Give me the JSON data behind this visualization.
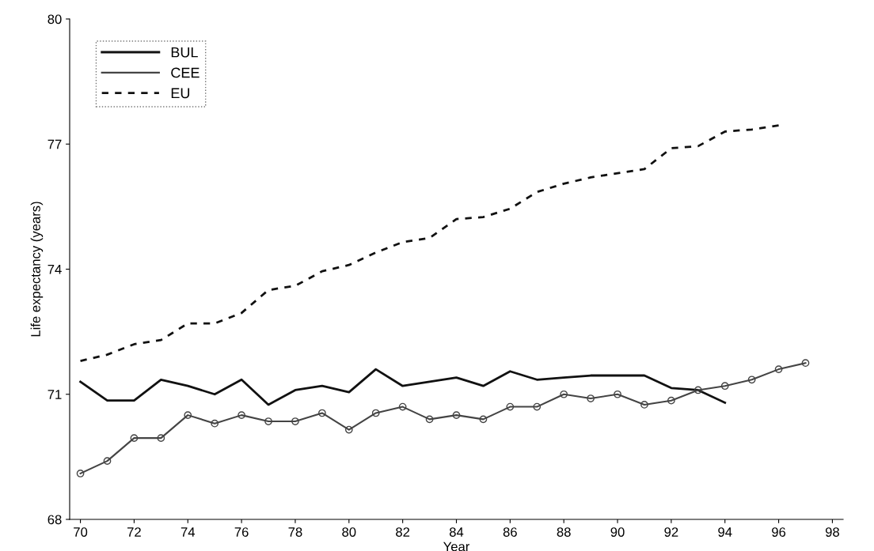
{
  "chart_data": {
    "type": "line",
    "xlabel": "Year",
    "ylabel": "Life expectancy (years)",
    "xlim": [
      69.6,
      98.4
    ],
    "xticks": [
      70,
      72,
      74,
      76,
      78,
      80,
      82,
      84,
      86,
      88,
      90,
      92,
      94,
      96,
      98
    ],
    "ylim": [
      68,
      80
    ],
    "yticks": [
      68,
      71,
      74,
      77,
      80
    ],
    "grid": false,
    "legend": "top left",
    "x": [
      70,
      71,
      72,
      73,
      74,
      75,
      76,
      77,
      78,
      79,
      80,
      81,
      82,
      83,
      84,
      85,
      86,
      87,
      88,
      89,
      90,
      91,
      92,
      93,
      94,
      95,
      96,
      97
    ],
    "series": [
      {
        "name": "BUL",
        "color": "#111111",
        "marker": "none",
        "line_style": "solid",
        "values": [
          71.3,
          70.85,
          70.85,
          71.35,
          71.2,
          71.0,
          71.35,
          70.75,
          71.1,
          71.2,
          71.05,
          71.6,
          71.2,
          71.3,
          71.4,
          71.2,
          71.55,
          71.35,
          71.4,
          71.45,
          71.45,
          71.45,
          71.15,
          71.1,
          70.8,
          null,
          null,
          null
        ]
      },
      {
        "name": "CEE",
        "color": "#444444",
        "marker": "circle",
        "line_style": "solid",
        "values": [
          69.1,
          69.4,
          69.95,
          69.95,
          70.5,
          70.3,
          70.5,
          70.35,
          70.35,
          70.55,
          70.15,
          70.55,
          70.7,
          70.4,
          70.5,
          70.4,
          70.7,
          70.7,
          71.0,
          70.9,
          71.0,
          70.75,
          70.85,
          71.1,
          71.2,
          71.35,
          71.6,
          71.75
        ]
      },
      {
        "name": "EU",
        "color": "#111111",
        "marker": "none",
        "line_style": "dashed",
        "values": [
          71.8,
          71.95,
          72.2,
          72.3,
          72.7,
          72.7,
          72.95,
          73.5,
          73.6,
          73.95,
          74.1,
          74.4,
          74.65,
          74.75,
          75.2,
          75.25,
          75.45,
          75.85,
          76.05,
          76.2,
          76.3,
          76.4,
          76.9,
          76.95,
          77.3,
          77.35,
          77.45,
          null
        ]
      }
    ]
  }
}
